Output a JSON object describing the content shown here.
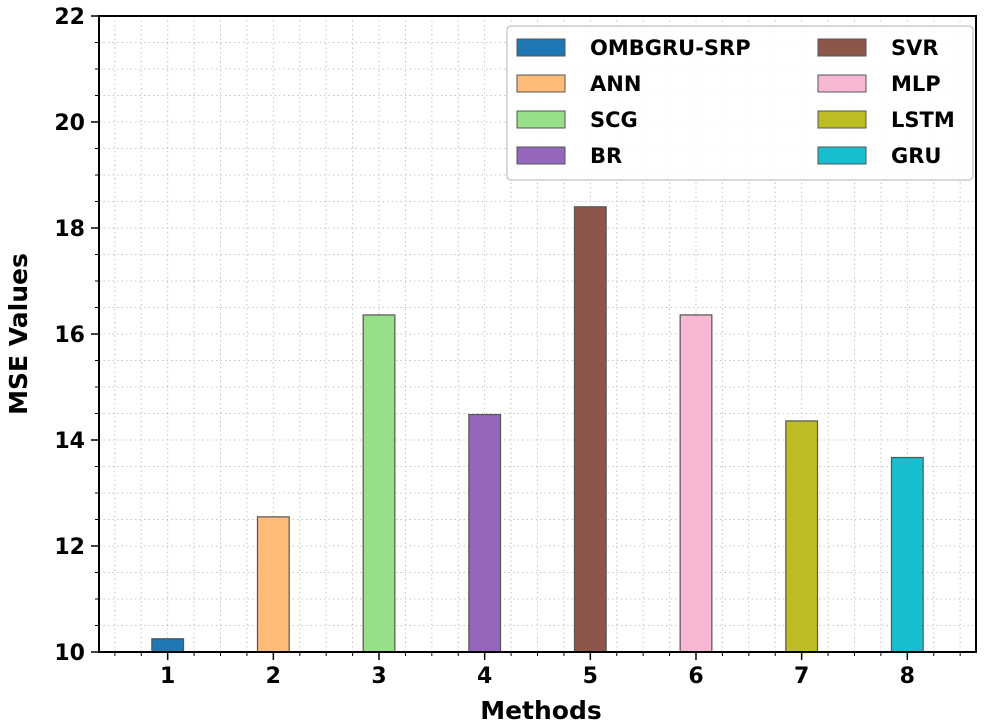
{
  "chart_data": {
    "type": "bar",
    "title": "",
    "xlabel": "Methods",
    "ylabel": "MSE Values",
    "categories": [
      "1",
      "2",
      "3",
      "4",
      "5",
      "6",
      "7",
      "8"
    ],
    "series": [
      {
        "name": "OMBGRU-SRP",
        "category": "1",
        "value": 10.25,
        "color": "#1f77b4"
      },
      {
        "name": "ANN",
        "category": "2",
        "value": 12.55,
        "color": "#ffbb78"
      },
      {
        "name": "SCG",
        "category": "3",
        "value": 16.36,
        "color": "#98df8a"
      },
      {
        "name": "BR",
        "category": "4",
        "value": 14.48,
        "color": "#9467bd"
      },
      {
        "name": "SVR",
        "category": "5",
        "value": 18.4,
        "color": "#8c564b"
      },
      {
        "name": "MLP",
        "category": "6",
        "value": 16.36,
        "color": "#f7b6d2"
      },
      {
        "name": "LSTM",
        "category": "7",
        "value": 14.36,
        "color": "#bcbd22"
      },
      {
        "name": "GRU",
        "category": "8",
        "value": 13.67,
        "color": "#17becf"
      }
    ],
    "ylim": [
      10,
      22
    ],
    "yticks": [
      "10",
      "12",
      "14",
      "16",
      "18",
      "20",
      "22"
    ],
    "grid": true,
    "legend_position": "top-right",
    "legend_columns": 2
  }
}
